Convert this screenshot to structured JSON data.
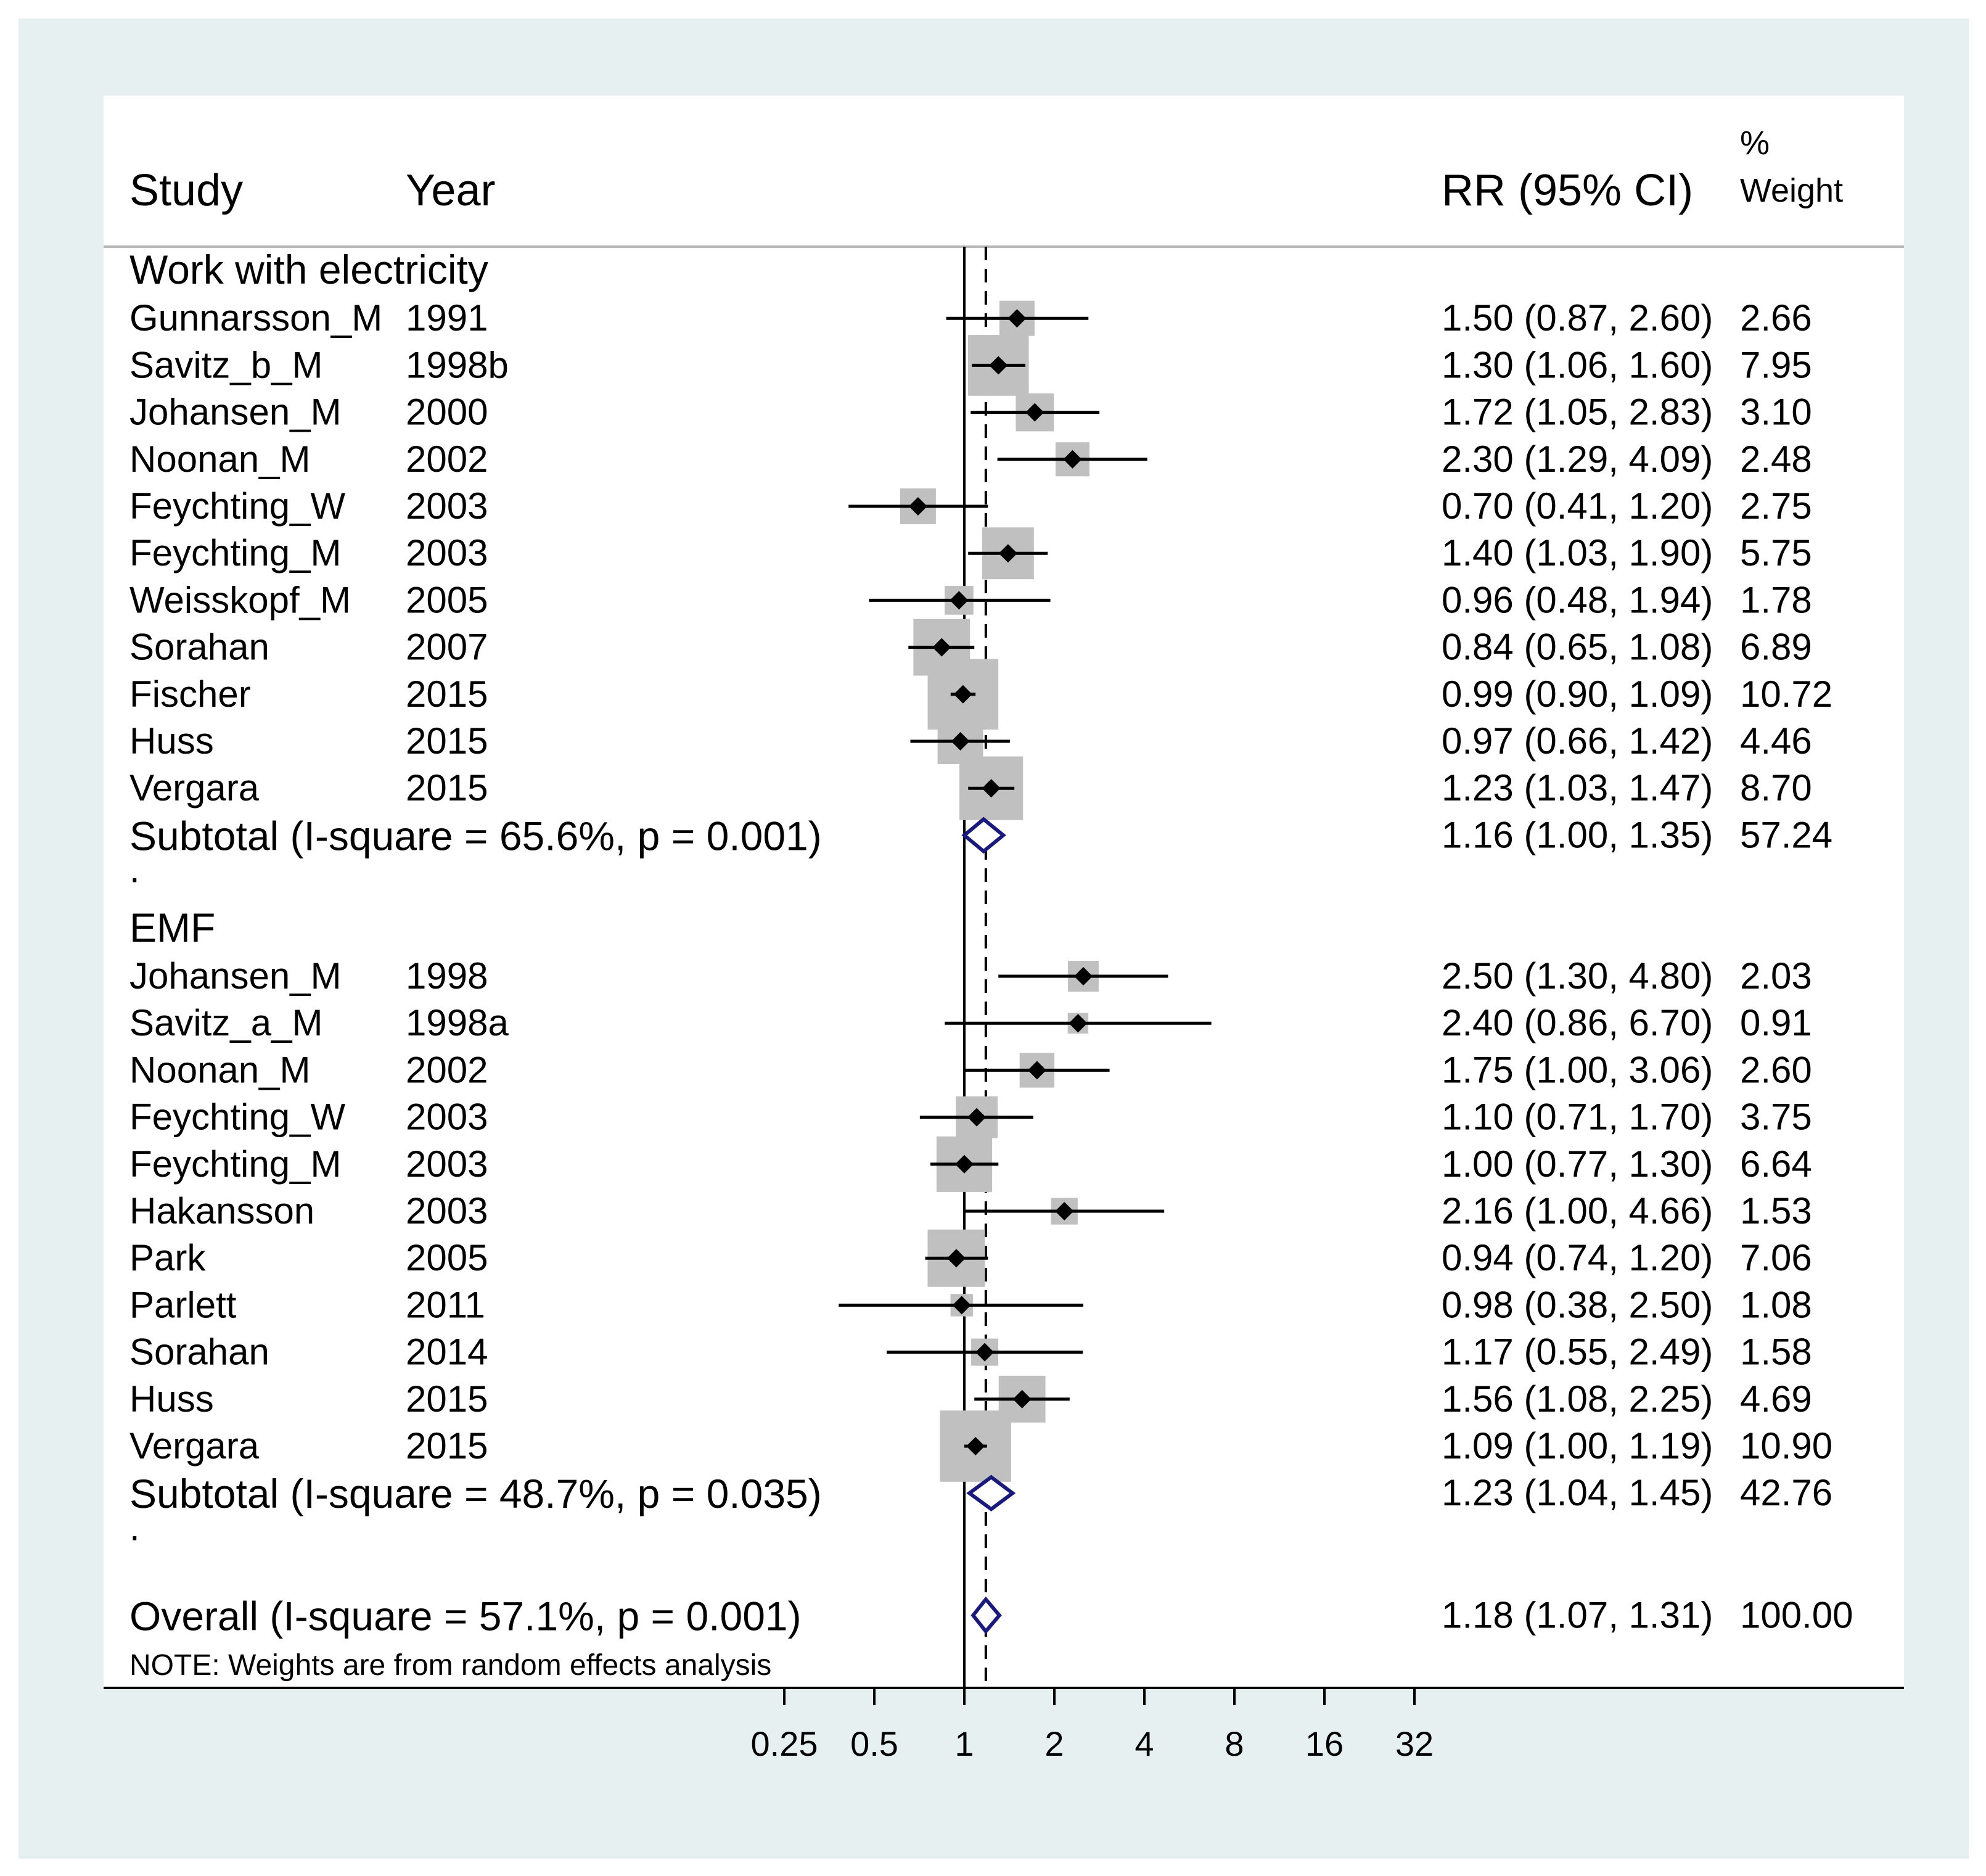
{
  "chart_data": {
    "type": "forest",
    "headers": {
      "study": "Study",
      "year": "Year",
      "effect": "RR (95% CI)",
      "weight_pct": "%",
      "weight_label": "Weight"
    },
    "groups": [
      {
        "name": "Work with electricity",
        "studies": [
          {
            "study": "Gunnarsson_M",
            "year": "1991",
            "rr": 1.5,
            "lo": 0.87,
            "hi": 2.6,
            "ci_text": "1.50 (0.87, 2.60)",
            "weight": "2.66"
          },
          {
            "study": "Savitz_b_M",
            "year": "1998b",
            "rr": 1.3,
            "lo": 1.06,
            "hi": 1.6,
            "ci_text": "1.30 (1.06, 1.60)",
            "weight": "7.95"
          },
          {
            "study": "Johansen_M",
            "year": "2000",
            "rr": 1.72,
            "lo": 1.05,
            "hi": 2.83,
            "ci_text": "1.72 (1.05, 2.83)",
            "weight": "3.10"
          },
          {
            "study": "Noonan_M",
            "year": "2002",
            "rr": 2.3,
            "lo": 1.29,
            "hi": 4.09,
            "ci_text": "2.30 (1.29, 4.09)",
            "weight": "2.48"
          },
          {
            "study": "Feychting_W",
            "year": "2003",
            "rr": 0.7,
            "lo": 0.41,
            "hi": 1.2,
            "ci_text": "0.70 (0.41, 1.20)",
            "weight": "2.75"
          },
          {
            "study": "Feychting_M",
            "year": "2003",
            "rr": 1.4,
            "lo": 1.03,
            "hi": 1.9,
            "ci_text": "1.40 (1.03, 1.90)",
            "weight": "5.75"
          },
          {
            "study": "Weisskopf_M",
            "year": "2005",
            "rr": 0.96,
            "lo": 0.48,
            "hi": 1.94,
            "ci_text": "0.96 (0.48, 1.94)",
            "weight": "1.78"
          },
          {
            "study": "Sorahan",
            "year": "2007",
            "rr": 0.84,
            "lo": 0.65,
            "hi": 1.08,
            "ci_text": "0.84 (0.65, 1.08)",
            "weight": "6.89"
          },
          {
            "study": "Fischer",
            "year": "2015",
            "rr": 0.99,
            "lo": 0.9,
            "hi": 1.09,
            "ci_text": "0.99 (0.90, 1.09)",
            "weight": "10.72"
          },
          {
            "study": "Huss",
            "year": "2015",
            "rr": 0.97,
            "lo": 0.66,
            "hi": 1.42,
            "ci_text": "0.97 (0.66, 1.42)",
            "weight": "4.46"
          },
          {
            "study": "Vergara",
            "year": "2015",
            "rr": 1.23,
            "lo": 1.03,
            "hi": 1.47,
            "ci_text": "1.23 (1.03, 1.47)",
            "weight": "8.70"
          }
        ],
        "subtotal": {
          "label": "Subtotal  (I-square = 65.6%, p = 0.001)",
          "rr": 1.16,
          "lo": 1.0,
          "hi": 1.35,
          "ci_text": "1.16 (1.00, 1.35)",
          "weight": "57.24"
        }
      },
      {
        "name": "EMF",
        "studies": [
          {
            "study": "Johansen_M",
            "year": "1998",
            "rr": 2.5,
            "lo": 1.3,
            "hi": 4.8,
            "ci_text": "2.50 (1.30, 4.80)",
            "weight": "2.03"
          },
          {
            "study": "Savitz_a_M",
            "year": "1998a",
            "rr": 2.4,
            "lo": 0.86,
            "hi": 6.7,
            "ci_text": "2.40 (0.86, 6.70)",
            "weight": "0.91"
          },
          {
            "study": "Noonan_M",
            "year": "2002",
            "rr": 1.75,
            "lo": 1.0,
            "hi": 3.06,
            "ci_text": "1.75 (1.00, 3.06)",
            "weight": "2.60"
          },
          {
            "study": "Feychting_W",
            "year": "2003",
            "rr": 1.1,
            "lo": 0.71,
            "hi": 1.7,
            "ci_text": "1.10 (0.71, 1.70)",
            "weight": "3.75"
          },
          {
            "study": "Feychting_M",
            "year": "2003",
            "rr": 1.0,
            "lo": 0.77,
            "hi": 1.3,
            "ci_text": "1.00 (0.77, 1.30)",
            "weight": "6.64"
          },
          {
            "study": "Hakansson",
            "year": "2003",
            "rr": 2.16,
            "lo": 1.0,
            "hi": 4.66,
            "ci_text": "2.16 (1.00, 4.66)",
            "weight": "1.53"
          },
          {
            "study": "Park",
            "year": "2005",
            "rr": 0.94,
            "lo": 0.74,
            "hi": 1.2,
            "ci_text": "0.94 (0.74, 1.20)",
            "weight": "7.06"
          },
          {
            "study": "Parlett",
            "year": "2011",
            "rr": 0.98,
            "lo": 0.38,
            "hi": 2.5,
            "ci_text": "0.98 (0.38, 2.50)",
            "weight": "1.08"
          },
          {
            "study": "Sorahan",
            "year": "2014",
            "rr": 1.17,
            "lo": 0.55,
            "hi": 2.49,
            "ci_text": "1.17 (0.55, 2.49)",
            "weight": "1.58"
          },
          {
            "study": "Huss",
            "year": "2015",
            "rr": 1.56,
            "lo": 1.08,
            "hi": 2.25,
            "ci_text": "1.56 (1.08, 2.25)",
            "weight": "4.69"
          },
          {
            "study": "Vergara",
            "year": "2015",
            "rr": 1.09,
            "lo": 1.0,
            "hi": 1.19,
            "ci_text": "1.09 (1.00, 1.19)",
            "weight": "10.90"
          }
        ],
        "subtotal": {
          "label": "Subtotal  (I-square = 48.7%, p = 0.035)",
          "rr": 1.23,
          "lo": 1.04,
          "hi": 1.45,
          "ci_text": "1.23 (1.04, 1.45)",
          "weight": "42.76"
        }
      }
    ],
    "overall": {
      "label": "Overall  (I-square = 57.1%, p = 0.001)",
      "rr": 1.18,
      "lo": 1.07,
      "hi": 1.31,
      "ci_text": "1.18 (1.07, 1.31)",
      "weight": "100.00"
    },
    "spacer": ".",
    "note": "NOTE: Weights are from random effects analysis",
    "x_scale": "log",
    "null_line": 1,
    "x_ticks": [
      0.25,
      0.5,
      1,
      2,
      4,
      8,
      16,
      32
    ],
    "x_tick_labels": [
      "0.25",
      "0.5",
      "1",
      "2",
      "4",
      "8",
      "16",
      "32"
    ],
    "colors": {
      "outer_background": "#e6f0f0",
      "plot_background": "#ffffff",
      "weight_box": "#c0c0c0",
      "point": "#000000",
      "pooled_diamond": "#1a1a7a",
      "text": "#000000"
    }
  }
}
